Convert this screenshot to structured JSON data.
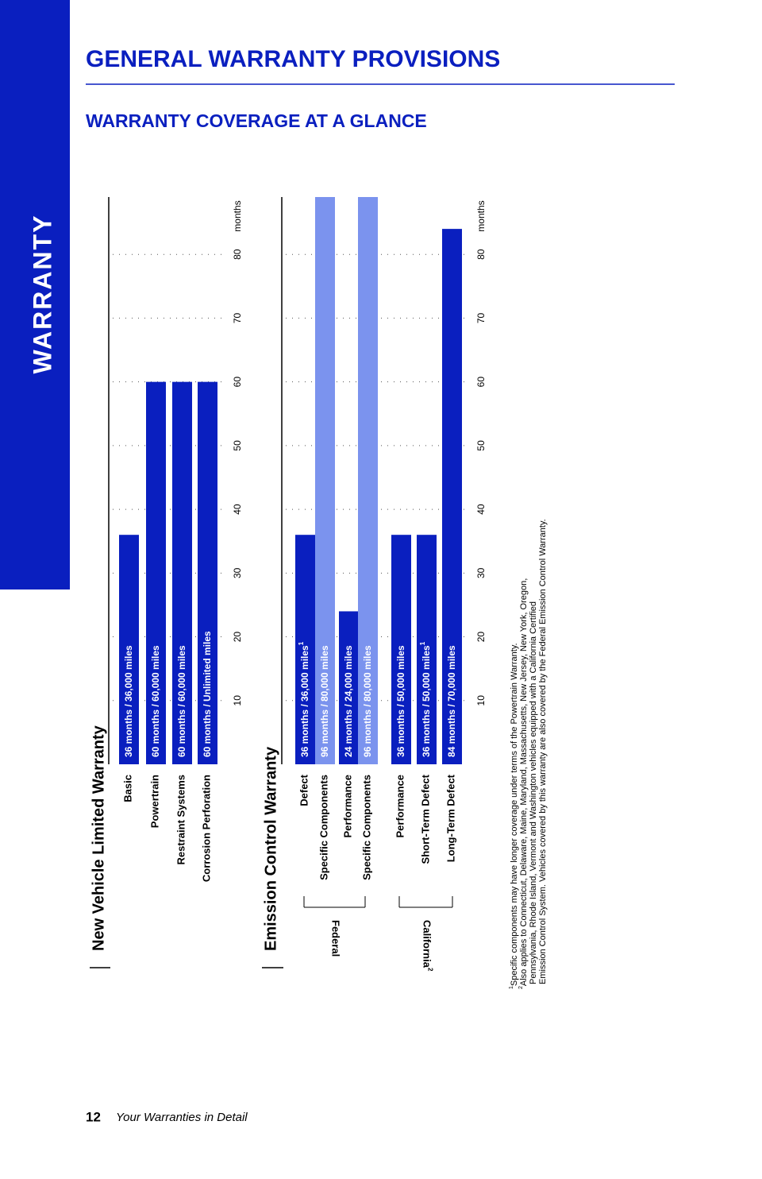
{
  "side_tab": "WARRANTY",
  "header": {
    "title": "GENERAL WARRANTY PROVISIONS",
    "subtitle": "WARRANTY COVERAGE AT A GLANCE"
  },
  "chart_data": [
    {
      "type": "bar",
      "title": "New Vehicle Limited Warranty",
      "axis_label": "months",
      "xlim": [
        0,
        89
      ],
      "xticks": [
        10,
        20,
        30,
        40,
        50,
        60,
        70,
        80
      ],
      "grid": true,
      "groups": [
        {
          "name": null,
          "categories": [
            "Basic",
            "Powertrain",
            "Restraint Systems",
            "Corrosion Perforation"
          ],
          "values": [
            36,
            60,
            60,
            60
          ],
          "value_labels": [
            "36 months  /  36,000 miles",
            "60 months  /  60,000 miles",
            "60 months  /  60,000 miles",
            "60 months  /  Unlimited miles"
          ],
          "notes": [
            null,
            null,
            null,
            null
          ],
          "colors": [
            "#0a1fbf",
            "#0a1fbf",
            "#0a1fbf",
            "#0a1fbf"
          ]
        }
      ]
    },
    {
      "type": "bar",
      "title": "Emission Control Warranty",
      "axis_label": "months",
      "xlim": [
        0,
        89
      ],
      "xticks": [
        10,
        20,
        30,
        40,
        50,
        60,
        70,
        80
      ],
      "grid": true,
      "groups": [
        {
          "name": "Federal",
          "note": null,
          "categories": [
            "Defect",
            "Specific Components",
            "Performance",
            "Specific Components"
          ],
          "values": [
            36,
            96,
            24,
            96
          ],
          "value_labels": [
            "36 months  /  36,000 miles",
            "96 months  /  80,000 miles",
            "24 months  /  24,000 miles",
            "96 months  /  80,000 miles"
          ],
          "notes": [
            "1",
            null,
            null,
            null
          ],
          "colors": [
            "#0a1fbf",
            "#7b93ee",
            "#0a1fbf",
            "#7b93ee"
          ]
        },
        {
          "name": "California",
          "note": "2",
          "categories": [
            "Performance",
            "Short-Term Defect",
            "Long-Term Defect"
          ],
          "values": [
            36,
            36,
            84
          ],
          "value_labels": [
            "36 months  /  50,000 miles",
            "36 months  /  50,000 miles",
            "84 months  /  70,000 miles"
          ],
          "notes": [
            null,
            "1",
            null
          ],
          "colors": [
            "#0a1fbf",
            "#0a1fbf",
            "#0a1fbf"
          ]
        }
      ]
    }
  ],
  "footnotes": [
    {
      "marker": "1",
      "lines": [
        "Specific components may have longer coverage under terms of the Powertrain Warranty."
      ]
    },
    {
      "marker": "2",
      "lines": [
        "Also applies to Connecticut, Delaware, Maine, Maryland, Massachusetts, New Jersey, New York, Oregon,",
        "Pennsylvania, Rhode Island, Vermont and Washington vehicles equipped with a California Certified",
        "Emission Control System. Vehicles covered by this warranty are also covered by the Federal Emission Control Warranty."
      ]
    }
  ],
  "footer": {
    "page_number": "12",
    "text": "Your Warranties in Detail"
  }
}
